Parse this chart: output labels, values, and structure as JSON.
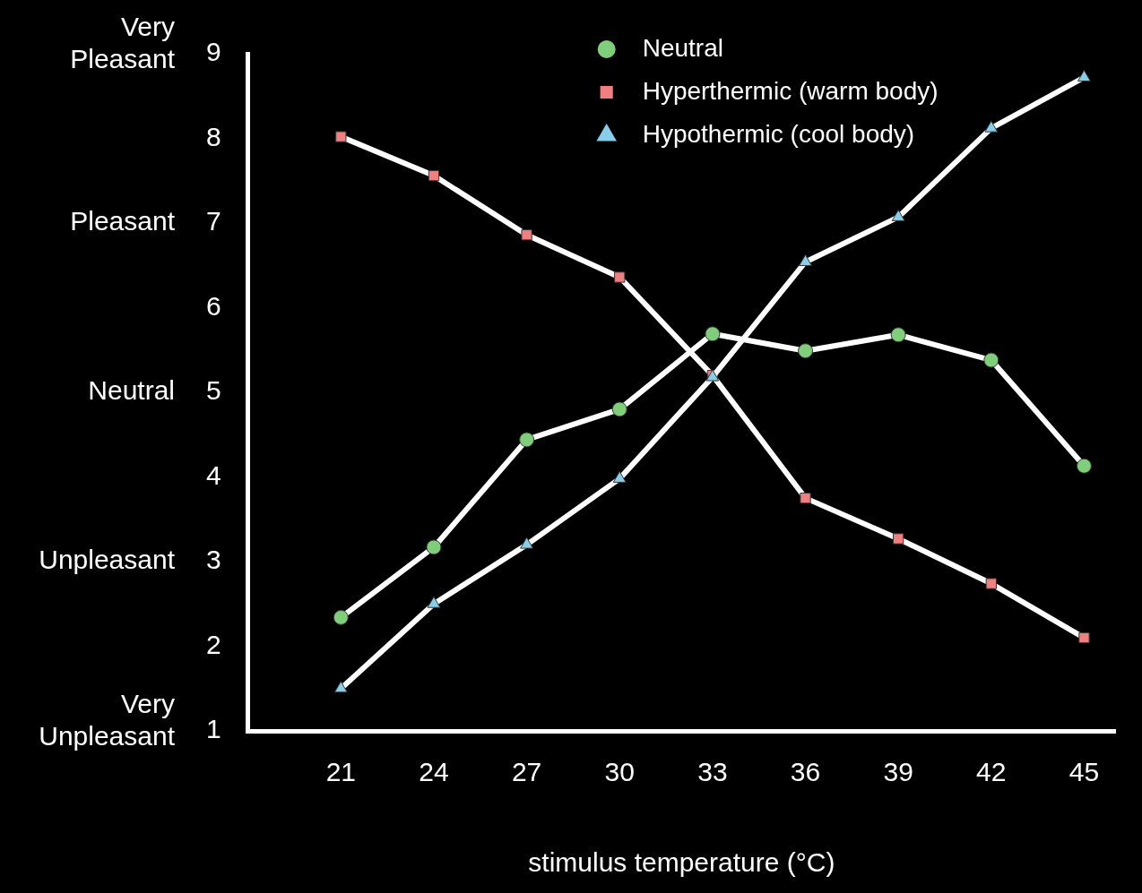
{
  "chart_data": {
    "type": "line",
    "xlabel": "stimulus temperature (°C)",
    "x": [
      21,
      24,
      27,
      30,
      33,
      36,
      39,
      42,
      45
    ],
    "xlim": [
      18,
      46
    ],
    "xticks": [
      21,
      24,
      27,
      30,
      33,
      36,
      39,
      42,
      45
    ],
    "ylim": [
      1,
      9
    ],
    "yticks": [
      1,
      2,
      3,
      4,
      5,
      6,
      7,
      8,
      9
    ],
    "annotations": [
      "Very\nPleasant",
      "Pleasant",
      "Neutral",
      "Unpleasant",
      "Very\nUnpleasant"
    ],
    "grid": false,
    "legend": "top right",
    "series": [
      {
        "name": "Neutral",
        "color": "#7fcf7a",
        "marker": "circle",
        "values": [
          2.34,
          3.17,
          4.44,
          4.8,
          5.69,
          5.49,
          5.68,
          5.38,
          4.13
        ]
      },
      {
        "name": "Hyperthermic (warm body)",
        "color": "#f08080",
        "marker": "square",
        "values": [
          8.02,
          7.56,
          6.86,
          6.36,
          5.2,
          3.75,
          3.27,
          2.74,
          2.1
        ]
      },
      {
        "name": "Hypothermic (cool body)",
        "color": "#87ceeb",
        "marker": "triangle",
        "values": [
          1.5,
          2.5,
          3.2,
          3.98,
          5.18,
          6.54,
          7.07,
          8.12,
          8.72
        ]
      }
    ]
  }
}
